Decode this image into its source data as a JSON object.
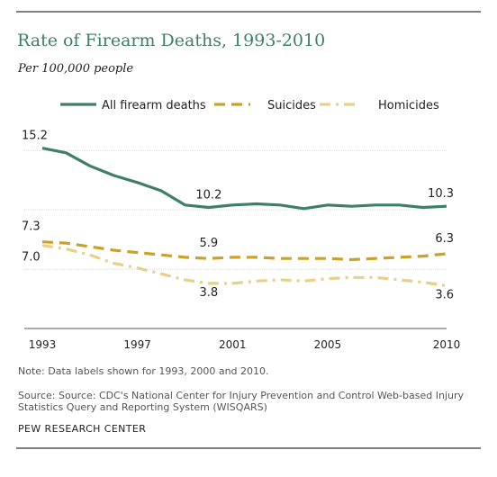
{
  "header": {
    "title": "Rate of Firearm Deaths, 1993-2010",
    "subtitle": "Per 100,000 people"
  },
  "footer": {
    "note": "Note: Data labels shown for 1993, 2000 and 2010.",
    "source": "Source: Source: CDC's  National Center for Injury  Prevention and Control Web-based Injury Statistics Query and Reporting System (WISQARS)",
    "credit": "PEW RESEARCH CENTER"
  },
  "chart_data": {
    "type": "line",
    "title": "Rate of Firearm Deaths, 1993-2010",
    "subtitle": "Per 100,000 people",
    "x": [
      1993,
      1994,
      1995,
      1996,
      1997,
      1998,
      1999,
      2000,
      2001,
      2002,
      2003,
      2004,
      2005,
      2006,
      2007,
      2008,
      2009,
      2010
    ],
    "x_ticks": [
      "1993",
      "1997",
      "2001",
      "2005",
      "2010"
    ],
    "x_tick_values": [
      1993,
      1997,
      2001,
      2005,
      2010
    ],
    "ylim": [
      0,
      16
    ],
    "grid": true,
    "legend": "top",
    "series": [
      {
        "name": "All firearm deaths",
        "color": "#3f7f68",
        "style": "solid",
        "values": [
          15.2,
          14.8,
          13.7,
          12.9,
          12.3,
          11.6,
          10.4,
          10.2,
          10.4,
          10.5,
          10.4,
          10.1,
          10.4,
          10.3,
          10.4,
          10.4,
          10.2,
          10.3
        ]
      },
      {
        "name": "Suicides",
        "color": "#c9a227",
        "style": "dash",
        "values": [
          7.3,
          7.2,
          6.9,
          6.6,
          6.4,
          6.2,
          6.0,
          5.9,
          6.0,
          6.0,
          5.9,
          5.9,
          5.9,
          5.8,
          5.9,
          6.0,
          6.1,
          6.3
        ]
      },
      {
        "name": "Homicides",
        "color": "#e8cf8a",
        "style": "dashdot",
        "values": [
          7.0,
          6.7,
          6.2,
          5.5,
          5.1,
          4.6,
          4.1,
          3.8,
          3.8,
          4.0,
          4.1,
          4.0,
          4.2,
          4.3,
          4.3,
          4.1,
          3.9,
          3.6
        ]
      }
    ],
    "data_labels": [
      {
        "series": 0,
        "x": 1993,
        "text": "15.2"
      },
      {
        "series": 0,
        "x": 2000,
        "text": "10.2"
      },
      {
        "series": 0,
        "x": 2010,
        "text": "10.3"
      },
      {
        "series": 1,
        "x": 1993,
        "text": "7.3"
      },
      {
        "series": 1,
        "x": 2000,
        "text": "5.9"
      },
      {
        "series": 1,
        "x": 2010,
        "text": "6.3"
      },
      {
        "series": 2,
        "x": 1993,
        "text": "7.0"
      },
      {
        "series": 2,
        "x": 2000,
        "text": "3.8"
      },
      {
        "series": 2,
        "x": 2010,
        "text": "3.6"
      }
    ]
  }
}
